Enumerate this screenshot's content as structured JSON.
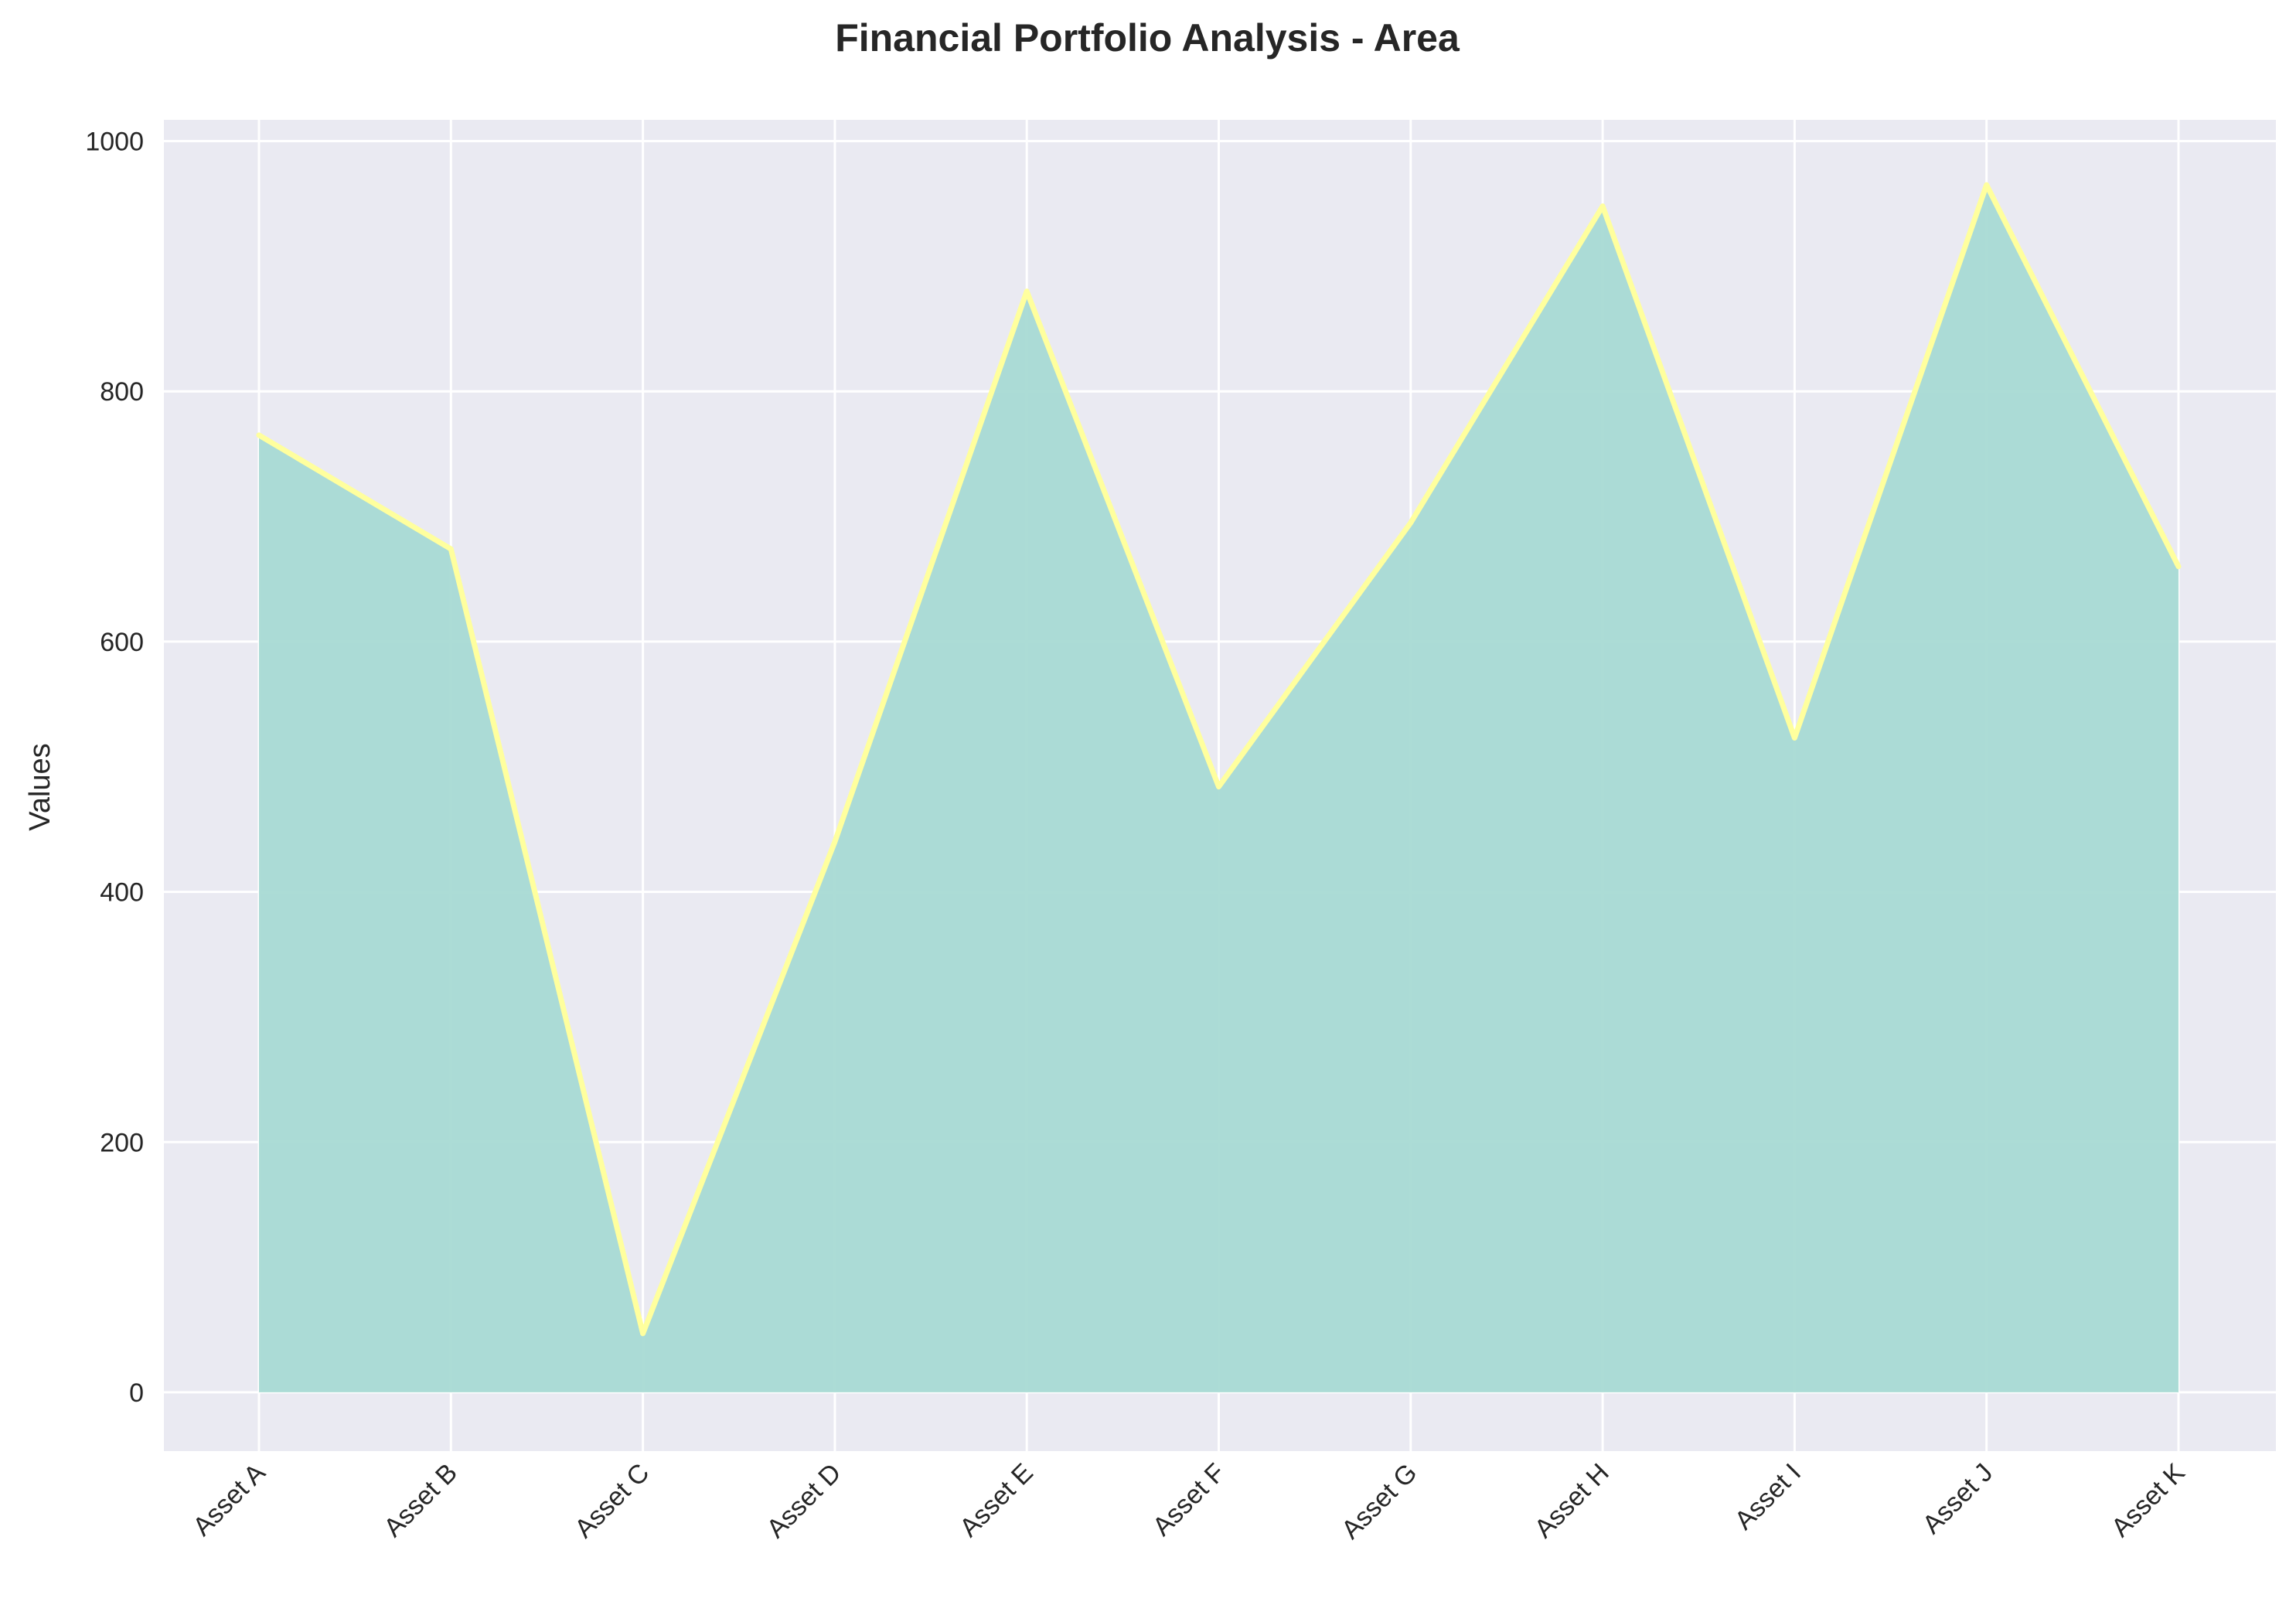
{
  "chart_data": {
    "type": "area",
    "title": "Financial Portfolio Analysis - Area",
    "xlabel": "",
    "ylabel": "Values",
    "categories": [
      "Asset A",
      "Asset B",
      "Asset C",
      "Asset D",
      "Asset E",
      "Asset F",
      "Asset G",
      "Asset H",
      "Asset I",
      "Asset J",
      "Asset K"
    ],
    "series": [
      {
        "values": [
          765,
          674,
          47,
          440,
          880,
          484,
          695,
          948,
          523,
          965,
          660
        ]
      }
    ],
    "ylim": [
      -47,
      1017
    ],
    "yticks": [
      0,
      200,
      400,
      600,
      800,
      1000
    ],
    "grid": true,
    "legend": "none",
    "colors": {
      "area_fill": "#a8dad4",
      "line": "#ffff9e",
      "plot_background": "#eaeaf2",
      "grid": "#ffffff",
      "text": "#262626"
    }
  }
}
